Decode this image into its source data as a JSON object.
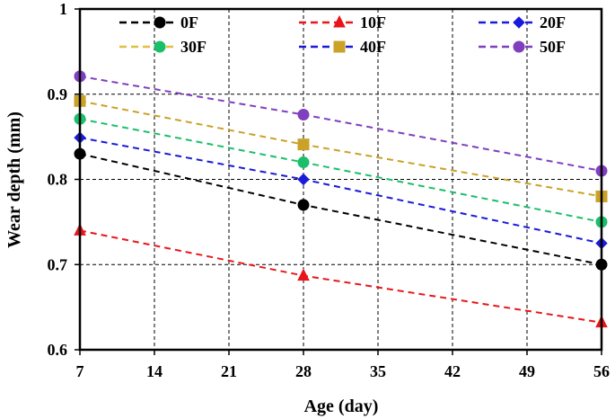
{
  "chart_data": {
    "type": "line",
    "title": "",
    "xlabel": "Age (day)",
    "ylabel": "Wear depth (mm)",
    "x": [
      7,
      28,
      56
    ],
    "xticks": [
      7,
      14,
      21,
      28,
      35,
      42,
      49,
      56
    ],
    "xtick_labels": [
      "7",
      "14",
      "21",
      "28",
      "35",
      "42",
      "49",
      "56"
    ],
    "yticks": [
      0.6,
      0.7,
      0.8,
      0.9,
      1.0
    ],
    "ytick_labels": [
      "0.6",
      "0.7",
      "0.8",
      "0.9",
      "1"
    ],
    "xlim": [
      7,
      56
    ],
    "ylim": [
      0.6,
      1.0
    ],
    "grid": true,
    "legend_position": "top",
    "series": [
      {
        "name": "0F",
        "values": [
          0.83,
          0.77,
          0.7
        ],
        "color": "#000000",
        "marker": "circle"
      },
      {
        "name": "10F",
        "values": [
          0.74,
          0.687,
          0.632
        ],
        "color": "#e8161b",
        "marker": "triangle"
      },
      {
        "name": "20F",
        "values": [
          0.849,
          0.8,
          0.725
        ],
        "color": "#1a1adb",
        "marker": "diamond"
      },
      {
        "name": "30F",
        "values": [
          0.871,
          0.82,
          0.75
        ],
        "color": "#1bbf6a",
        "marker": "circle"
      },
      {
        "name": "40F",
        "values": [
          0.892,
          0.841,
          0.78
        ],
        "color": "#c9a227",
        "marker": "square"
      },
      {
        "name": "50F",
        "values": [
          0.921,
          0.876,
          0.81
        ],
        "color": "#7f3fbf",
        "marker": "circle"
      }
    ],
    "legend_line_colors": [
      "#000000",
      "#e8161b",
      "#1a1adb",
      "#e0c040",
      "#1a1adb",
      "#7f3fbf"
    ]
  }
}
